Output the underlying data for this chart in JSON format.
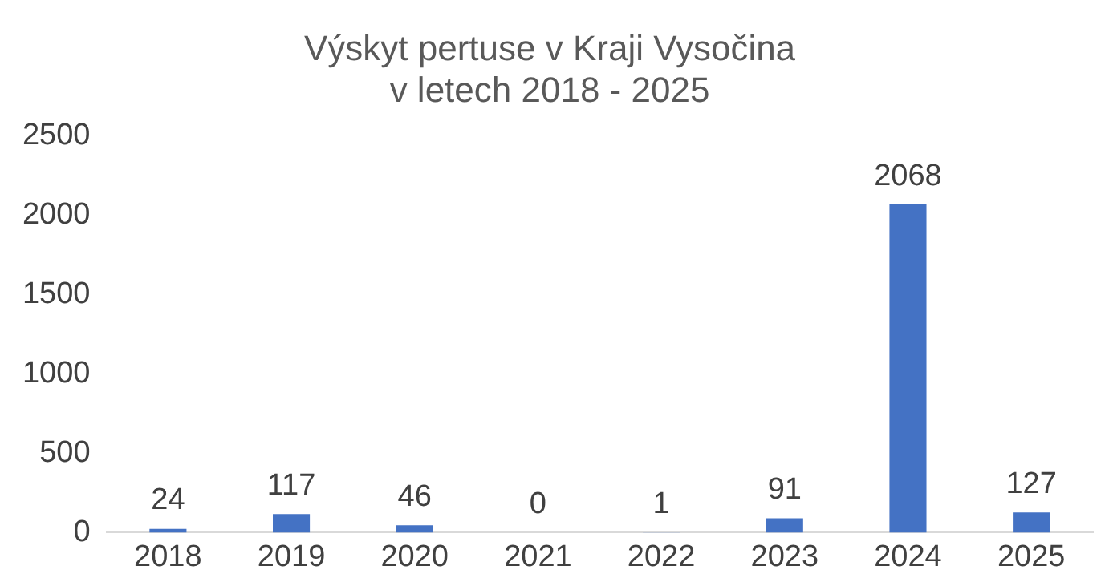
{
  "chart_data": {
    "type": "bar",
    "title": "Výskyt pertuse v Kraji Vysočina\nv letech 2018 - 2025",
    "categories": [
      "2018",
      "2019",
      "2020",
      "2021",
      "2022",
      "2023",
      "2024",
      "2025"
    ],
    "values": [
      24,
      117,
      46,
      0,
      1,
      91,
      2068,
      127
    ],
    "color": "#4472c4",
    "ylim": [
      0,
      2500
    ],
    "yticks": [
      0,
      500,
      1000,
      1500,
      2000,
      2500
    ],
    "grid": false,
    "data_labels": true
  }
}
